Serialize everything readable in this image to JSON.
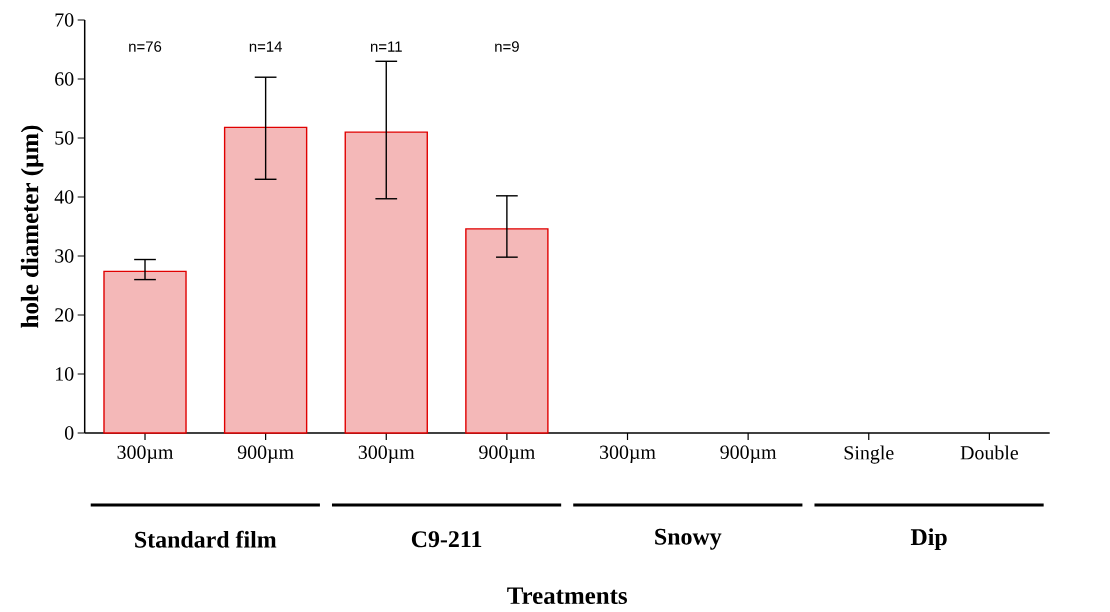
{
  "chart_data": {
    "type": "bar",
    "xlabel": "Treatments",
    "ylabel": "hole diameter (µm)",
    "categories": [
      "300µm",
      "900µm",
      "300µm",
      "900µm",
      "300µm",
      "900µm",
      "Single",
      "Double"
    ],
    "values": [
      27.4,
      51.8,
      51.0,
      34.6,
      null,
      null,
      null,
      null
    ],
    "errors": [
      [
        26.0,
        29.4
      ],
      [
        43.0,
        60.3
      ],
      [
        39.7,
        63.0
      ],
      [
        29.8,
        40.2
      ],
      null,
      null,
      null,
      null
    ],
    "color": "#f4b8b8",
    "ylim": [
      0,
      70
    ],
    "yticks": [
      0,
      10,
      20,
      30,
      40,
      50,
      60,
      70
    ],
    "annotations": [
      "n=76",
      "n=14",
      "n=11",
      "n=9",
      "Standard film",
      "C9-211",
      "Snowy",
      "Dip"
    ]
  }
}
